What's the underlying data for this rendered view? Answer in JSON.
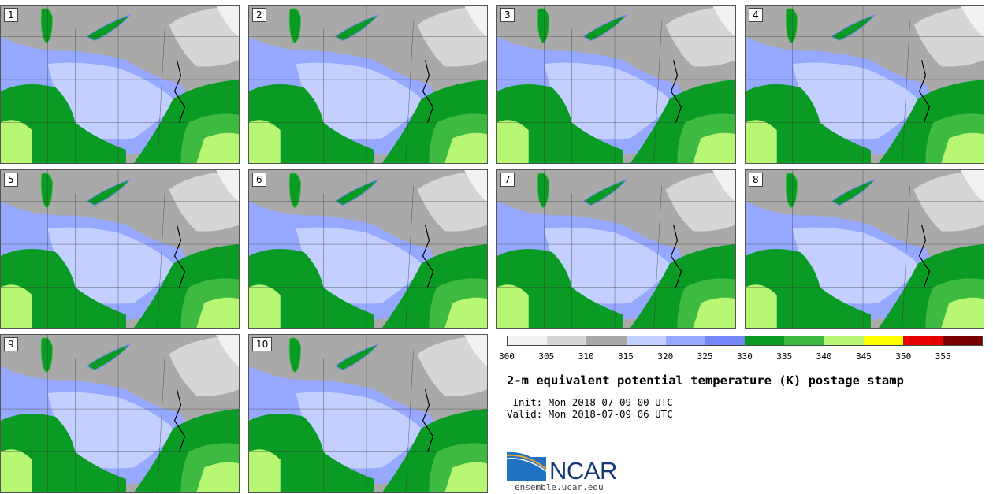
{
  "panels": [
    {
      "label": "1"
    },
    {
      "label": "2"
    },
    {
      "label": "3"
    },
    {
      "label": "4"
    },
    {
      "label": "5"
    },
    {
      "label": "6"
    },
    {
      "label": "7"
    },
    {
      "label": "8"
    },
    {
      "label": "9"
    },
    {
      "label": "10"
    }
  ],
  "colorbar": {
    "colors": [
      "#f2f2f2",
      "#d6d6d6",
      "#a9a9a9",
      "#c3cfff",
      "#96a8ff",
      "#7387f8",
      "#0a9b24",
      "#3fba40",
      "#b8f774",
      "#ffff00",
      "#e60000",
      "#7a0000"
    ],
    "tick_labels": [
      "300",
      "305",
      "310",
      "315",
      "320",
      "325",
      "330",
      "335",
      "340",
      "345",
      "350",
      "355"
    ]
  },
  "title": "2-m equivalent potential temperature (K) postage stamp",
  "init": " Init: Mon 2018-07-09 00 UTC",
  "valid": "Valid: Mon 2018-07-09 06 UTC",
  "logo": {
    "text": "NCAR",
    "site": "ensemble.ucar.edu"
  }
}
